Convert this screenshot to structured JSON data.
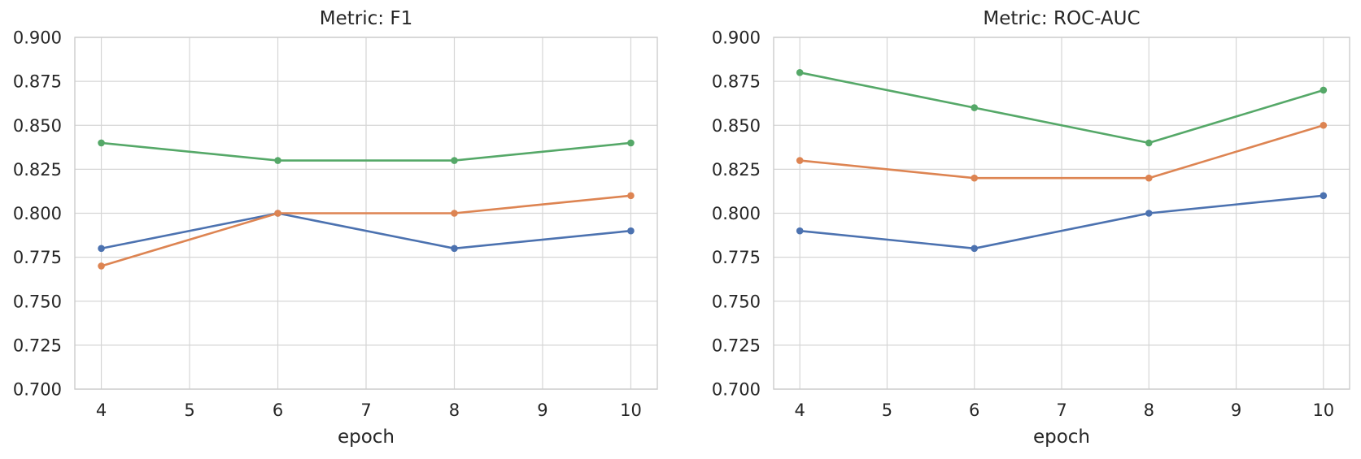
{
  "figure": {
    "background_color": "#ffffff",
    "grid_color": "#d6d6d6",
    "spine_color": "#cccccc",
    "text_color": "#262626"
  },
  "chart_data": [
    {
      "type": "line",
      "title": "Metric: F1",
      "xlabel": "epoch",
      "ylabel": "",
      "x": [
        4,
        6,
        8,
        10
      ],
      "xtick_labels": [
        "4",
        "5",
        "6",
        "7",
        "8",
        "9",
        "10"
      ],
      "xticks": [
        4,
        5,
        6,
        7,
        8,
        9,
        10
      ],
      "ytick_labels": [
        "0.700",
        "0.725",
        "0.750",
        "0.775",
        "0.800",
        "0.825",
        "0.850",
        "0.875",
        "0.900"
      ],
      "yticks": [
        0.7,
        0.725,
        0.75,
        0.775,
        0.8,
        0.825,
        0.85,
        0.875,
        0.9
      ],
      "xlim": [
        3.7,
        10.3
      ],
      "ylim": [
        0.7,
        0.9
      ],
      "grid": true,
      "legend": "none",
      "series": [
        {
          "color": "#4C72B0",
          "marker": "circle",
          "values": [
            0.78,
            0.8,
            0.78,
            0.79
          ]
        },
        {
          "color": "#DD8452",
          "marker": "circle",
          "values": [
            0.77,
            0.8,
            0.8,
            0.81
          ]
        },
        {
          "color": "#55A868",
          "marker": "circle",
          "values": [
            0.84,
            0.83,
            0.83,
            0.84
          ]
        }
      ]
    },
    {
      "type": "line",
      "title": "Metric: ROC-AUC",
      "xlabel": "epoch",
      "ylabel": "",
      "x": [
        4,
        6,
        8,
        10
      ],
      "xtick_labels": [
        "4",
        "5",
        "6",
        "7",
        "8",
        "9",
        "10"
      ],
      "xticks": [
        4,
        5,
        6,
        7,
        8,
        9,
        10
      ],
      "ytick_labels": [
        "0.700",
        "0.725",
        "0.750",
        "0.775",
        "0.800",
        "0.825",
        "0.850",
        "0.875",
        "0.900"
      ],
      "yticks": [
        0.7,
        0.725,
        0.75,
        0.775,
        0.8,
        0.825,
        0.85,
        0.875,
        0.9
      ],
      "xlim": [
        3.7,
        10.3
      ],
      "ylim": [
        0.7,
        0.9
      ],
      "grid": true,
      "legend": "none",
      "series": [
        {
          "color": "#4C72B0",
          "marker": "circle",
          "values": [
            0.79,
            0.78,
            0.8,
            0.81
          ]
        },
        {
          "color": "#DD8452",
          "marker": "circle",
          "values": [
            0.83,
            0.82,
            0.82,
            0.85
          ]
        },
        {
          "color": "#55A868",
          "marker": "circle",
          "values": [
            0.88,
            0.86,
            0.84,
            0.87
          ]
        }
      ]
    }
  ]
}
